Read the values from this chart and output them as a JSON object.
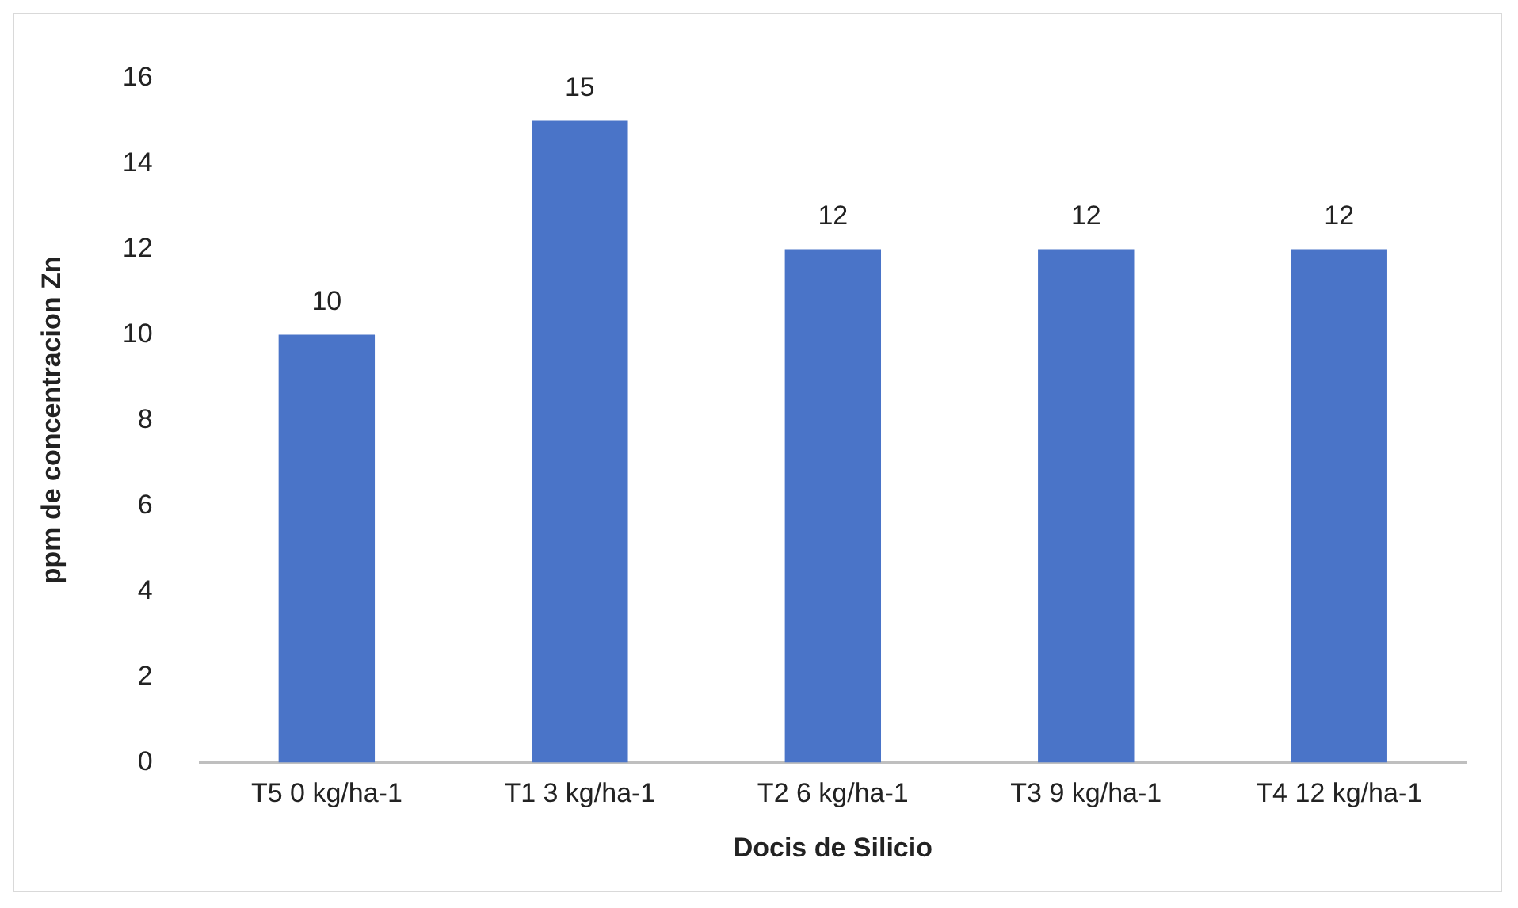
{
  "chart_data": {
    "type": "bar",
    "xlabel": "Docis de Silicio",
    "ylabel": "ppm de concentracion Zn",
    "categories": [
      "T5 0 kg/ha-1",
      "T1 3 kg/ha-1",
      "T2 6 kg/ha-1",
      "T3 9 kg/ha-1",
      "T4 12 kg/ha-1"
    ],
    "values": [
      10,
      15,
      12,
      12,
      12
    ],
    "color": "#4a74c8",
    "ylim": [
      0,
      16
    ],
    "yticks": [
      0,
      2,
      4,
      6,
      8,
      10,
      12,
      14,
      16
    ],
    "grid": false,
    "legend": false,
    "data_labels": true
  }
}
